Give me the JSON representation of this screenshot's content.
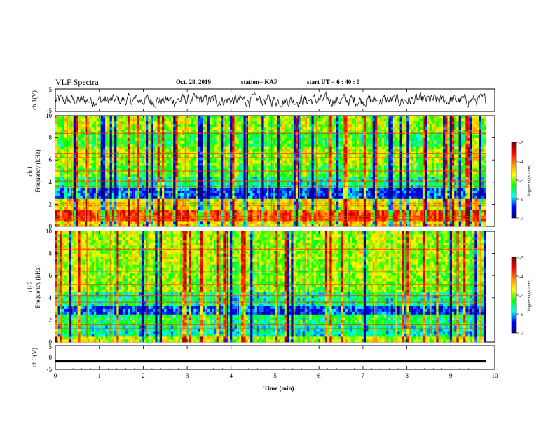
{
  "header": {
    "title": "VLF Spectra",
    "date": "Oct. 28, 2019",
    "station": "station= KAP",
    "start": "start  UT =   6  : 40 : 0"
  },
  "colorbar": {
    "label": "log(PSD)(V²/Hz)",
    "ticks": [
      "-3",
      "-4",
      "-5",
      "-6",
      "-7"
    ],
    "stops": [
      "#7a0000",
      "#ff0000",
      "#ff8c00",
      "#ffff00",
      "#00ff00",
      "#00ffff",
      "#0000ff",
      "#00008b"
    ]
  },
  "chart_data": [
    {
      "type": "line",
      "name": "ch1-waveform",
      "ylabel": "ch.1(V)",
      "ylim": [
        -5,
        5
      ],
      "yticks": [
        "5",
        "-5"
      ],
      "xlim": [
        0,
        10
      ],
      "description_values": "dense noisy waveform oscillating roughly between -3 V and +3 V over 0–9.8 min"
    },
    {
      "type": "heatmap",
      "name": "ch1-spectrogram",
      "ylabel_line1": "ch.1",
      "ylabel_line2": "Frequency (kHz)",
      "ylim": [
        0,
        10
      ],
      "yticks": [
        "0",
        "2",
        "4",
        "6",
        "8",
        "10"
      ],
      "xlim": [
        0,
        9.8
      ],
      "zlim": [
        -7,
        -3
      ],
      "bands_khz": [
        {
          "f0": 0.0,
          "f1": 0.5,
          "level": -4.5
        },
        {
          "f0": 0.5,
          "f1": 1.5,
          "level": -3.8
        },
        {
          "f0": 1.5,
          "f1": 2.6,
          "level": -4.6
        },
        {
          "f0": 2.6,
          "f1": 3.4,
          "level": -6.3
        },
        {
          "f0": 3.4,
          "f1": 4.6,
          "level": -5.6
        },
        {
          "f0": 4.6,
          "f1": 5.4,
          "level": -5.2
        },
        {
          "f0": 5.4,
          "f1": 7.2,
          "level": -4.9
        },
        {
          "f0": 7.2,
          "f1": 8.6,
          "level": -5.3
        },
        {
          "f0": 8.6,
          "f1": 10.0,
          "level": -4.9
        }
      ],
      "lines_khz": [
        0.6,
        0.9,
        1.9,
        2.1,
        3.6,
        4.1,
        5.0,
        6.2,
        6.6,
        8.4
      ]
    },
    {
      "type": "heatmap",
      "name": "ch2-spectrogram",
      "ylabel_line1": "ch.2",
      "ylabel_line2": "Frequency (kHz)",
      "ylim": [
        0,
        10
      ],
      "yticks": [
        "0",
        "2",
        "4",
        "6",
        "8",
        "10"
      ],
      "xlim": [
        0,
        9.8
      ],
      "zlim": [
        -7,
        -3
      ],
      "bands_khz": [
        {
          "f0": 0.0,
          "f1": 0.6,
          "level": -4.8
        },
        {
          "f0": 0.6,
          "f1": 1.4,
          "level": -5.7
        },
        {
          "f0": 1.4,
          "f1": 2.4,
          "level": -5.4
        },
        {
          "f0": 2.4,
          "f1": 3.3,
          "level": -6.3
        },
        {
          "f0": 3.3,
          "f1": 4.6,
          "level": -5.6
        },
        {
          "f0": 4.6,
          "f1": 7.0,
          "level": -5.0
        },
        {
          "f0": 7.0,
          "f1": 10.0,
          "level": -4.9
        }
      ],
      "lines_khz": [
        1.2,
        1.6,
        3.6,
        4.2,
        5.2,
        6.4,
        8.4
      ]
    },
    {
      "type": "line",
      "name": "ch3-waveform",
      "ylabel": "ch.3(V)",
      "ylim": [
        -5,
        5
      ],
      "yticks": [
        "5",
        "0",
        "-5"
      ],
      "xlim": [
        0,
        10
      ],
      "xlabel": "Time (min)",
      "xticks": [
        "0",
        "1",
        "2",
        "3",
        "4",
        "5",
        "6",
        "7",
        "8",
        "9",
        "10"
      ],
      "x": [
        0,
        9.8
      ],
      "y": [
        -1.5,
        -1.5
      ]
    }
  ]
}
